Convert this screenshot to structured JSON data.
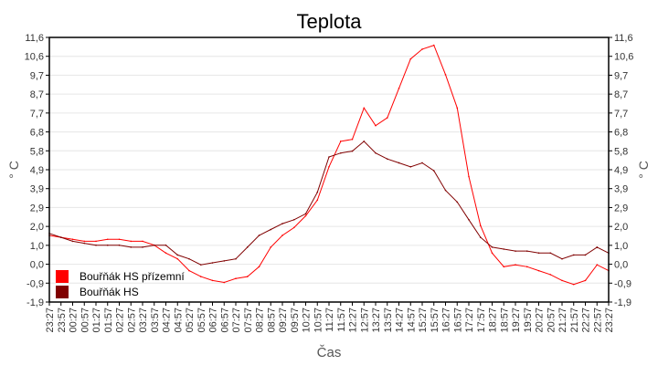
{
  "chart_data": {
    "type": "line",
    "title": "Teplota",
    "xlabel": "Čas",
    "ylabel": "° C",
    "ylim": [
      -1.9,
      11.6
    ],
    "y_ticks": [
      "11,6",
      "10,6",
      "9,7",
      "8,7",
      "7,7",
      "6,8",
      "5,8",
      "4,9",
      "3,9",
      "2,9",
      "2,0",
      "1,0",
      "0,0",
      "-0,9",
      "-1,9"
    ],
    "grid": true,
    "legend": "bottom-left",
    "x": [
      "23:27",
      "23:57",
      "00:27",
      "00:57",
      "01:27",
      "01:57",
      "02:27",
      "02:57",
      "03:27",
      "03:57",
      "04:27",
      "04:57",
      "05:27",
      "05:57",
      "06:27",
      "06:57",
      "07:27",
      "07:57",
      "08:27",
      "08:57",
      "09:27",
      "09:57",
      "10:27",
      "10:57",
      "11:27",
      "11:57",
      "12:27",
      "12:57",
      "13:27",
      "13:57",
      "14:27",
      "14:57",
      "15:27",
      "15:57",
      "16:27",
      "16:57",
      "17:27",
      "17:57",
      "18:27",
      "18:57",
      "19:27",
      "19:57",
      "20:27",
      "20:57",
      "21:27",
      "21:57",
      "22:27",
      "22:57",
      "23:27"
    ],
    "series": [
      {
        "name": "Bouřňák HS přízemní",
        "color": "#ff0000",
        "values": [
          1.5,
          1.4,
          1.3,
          1.2,
          1.2,
          1.3,
          1.3,
          1.2,
          1.2,
          1.0,
          0.6,
          0.3,
          -0.3,
          -0.6,
          -0.8,
          -0.9,
          -0.7,
          -0.6,
          -0.1,
          0.9,
          1.5,
          1.9,
          2.5,
          3.3,
          5.0,
          6.3,
          6.4,
          8.0,
          7.1,
          7.5,
          9.0,
          10.5,
          11.0,
          11.2,
          9.7,
          8.0,
          4.5,
          2.0,
          0.6,
          -0.1,
          0.0,
          -0.1,
          -0.3,
          -0.5,
          -0.8,
          -1.0,
          -0.8,
          0.0,
          -0.3
        ]
      },
      {
        "name": "Bouřňák HS",
        "color": "#800000",
        "values": [
          1.6,
          1.4,
          1.2,
          1.1,
          1.0,
          1.0,
          1.0,
          0.9,
          0.9,
          1.0,
          1.0,
          0.5,
          0.3,
          0.0,
          0.1,
          0.2,
          0.3,
          0.9,
          1.5,
          1.8,
          2.1,
          2.3,
          2.6,
          3.7,
          5.5,
          5.7,
          5.8,
          6.3,
          5.7,
          5.4,
          5.2,
          5.0,
          5.2,
          4.8,
          3.8,
          3.2,
          2.3,
          1.4,
          0.9,
          0.8,
          0.7,
          0.7,
          0.6,
          0.6,
          0.3,
          0.5,
          0.5,
          0.9,
          0.6
        ]
      }
    ]
  }
}
